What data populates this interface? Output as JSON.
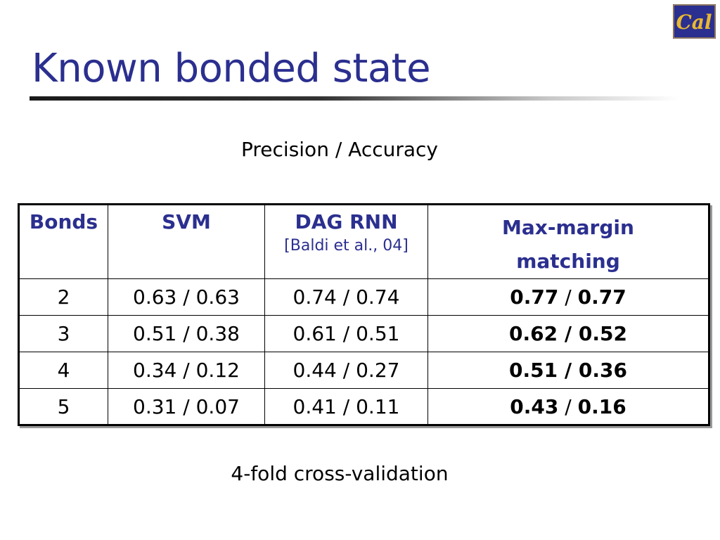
{
  "slide": {
    "title": "Known bonded state",
    "subtitle": "Precision / Accuracy",
    "footer": "4-fold cross-validation",
    "logo_text": "Cal"
  },
  "table": {
    "headers": {
      "bonds": "Bonds",
      "svm": "SVM",
      "dag_rnn": "DAG RNN",
      "dag_rnn_cite": "[Baldi et al., 04]",
      "max_margin_line1": "Max-margin",
      "max_margin_line2": "matching"
    },
    "rows": [
      {
        "bonds": "2",
        "svm": "0.63 / 0.63",
        "dag_rnn": "0.74 / 0.74",
        "mmm_precision": "0.77",
        "mmm_accuracy": "0.77"
      },
      {
        "bonds": "3",
        "svm": "0.51 / 0.38",
        "dag_rnn": "0.61 / 0.51",
        "mmm_precision": "0.62",
        "mmm_accuracy": "0.52"
      },
      {
        "bonds": "4",
        "svm": "0.34 / 0.12",
        "dag_rnn": "0.44 / 0.27",
        "mmm_precision": "0.51",
        "mmm_accuracy": "0.36"
      },
      {
        "bonds": "5",
        "svm": "0.31 / 0.07",
        "dag_rnn": "0.41 / 0.11",
        "mmm_precision": "0.43",
        "mmm_accuracy": "0.16"
      }
    ],
    "separator": "/"
  },
  "colors": {
    "title": "#2b2f8f",
    "header_text": "#2b2f8f",
    "logo_bg": "#2b2f8f",
    "logo_text": "#e8b830"
  }
}
